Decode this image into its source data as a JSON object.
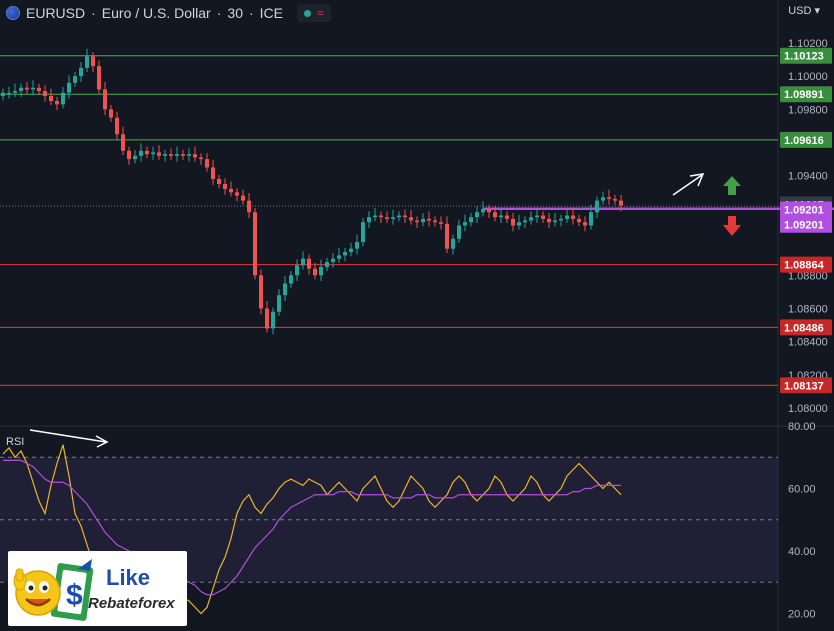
{
  "header": {
    "symbol": "EURUSD",
    "description": "Euro / U.S. Dollar",
    "interval": "30",
    "exchange": "ICE",
    "separator": "·",
    "currency": "USD",
    "wave_glyph": "≈"
  },
  "colors": {
    "background": "#131722",
    "up": "#26a69a",
    "down": "#ef5350",
    "support_line": "#e53935",
    "resistance_line": "#4caf50",
    "magenta": "#b04fe0",
    "rsi_line": "#f0b429",
    "rsi_ma": "#b24fdc"
  },
  "rsi": {
    "label": "RSI"
  },
  "logo": {
    "title": "Like",
    "subtitle": "Rebateforex",
    "mascot_icon": "smiley-thumbs-up-icon"
  },
  "chart_data": [
    {
      "type": "candlestick",
      "title": "",
      "ylim": [
        1.0794,
        1.1029
      ],
      "y_ticks": [
        "1.10200",
        "1.10000",
        "1.09800",
        "1.09400",
        "1.08800",
        "1.08600",
        "1.08400",
        "1.08200",
        "1.08000"
      ],
      "levels": [
        {
          "value": 1.10123,
          "label": "1.10123",
          "kind": "resistance"
        },
        {
          "value": 1.09891,
          "label": "1.09891",
          "kind": "resistance"
        },
        {
          "value": 1.09616,
          "label": "1.09616",
          "kind": "resistance"
        },
        {
          "value": 1.09217,
          "label": "1.09217",
          "kind": "current"
        },
        {
          "value": 1.09201,
          "label": "1.09201",
          "kind": "highlight"
        },
        {
          "value": 1.08864,
          "label": "1.08864",
          "kind": "support"
        },
        {
          "value": 1.08486,
          "label": "1.08486",
          "kind": "support"
        },
        {
          "value": 1.08137,
          "label": "1.08137",
          "kind": "support"
        }
      ],
      "extra_labels": [
        {
          "value": 1.09201,
          "label": "1.09201"
        }
      ],
      "horizontal_ray": {
        "value": 1.09201,
        "from_bar": 80
      },
      "annotations": [
        "arrow-up-right",
        "green-up-arrow",
        "red-down-arrow"
      ],
      "close": [
        1.099,
        1.099,
        1.0991,
        1.0993,
        1.0992,
        1.0993,
        1.0991,
        1.0988,
        1.0985,
        1.0983,
        1.099,
        1.0996,
        1.1,
        1.1005,
        1.1012,
        1.1006,
        1.0992,
        1.098,
        1.0975,
        1.0965,
        1.0955,
        1.095,
        1.0952,
        1.0955,
        1.0953,
        1.0954,
        1.0952,
        1.0953,
        1.0952,
        1.0953,
        1.0952,
        1.0953,
        1.0951,
        1.095,
        1.0945,
        1.0938,
        1.0935,
        1.0932,
        1.093,
        1.0928,
        1.0925,
        1.0918,
        1.088,
        1.086,
        1.0848,
        1.0858,
        1.0868,
        1.0875,
        1.088,
        1.0886,
        1.089,
        1.0884,
        1.088,
        1.0885,
        1.0888,
        1.089,
        1.0892,
        1.0894,
        1.0896,
        1.09,
        1.0912,
        1.0915,
        1.0916,
        1.0915,
        1.0914,
        1.0915,
        1.0916,
        1.0915,
        1.0913,
        1.0912,
        1.0914,
        1.0913,
        1.0912,
        1.0911,
        1.0896,
        1.0902,
        1.091,
        1.0912,
        1.0915,
        1.0918,
        1.092,
        1.0918,
        1.0915,
        1.0916,
        1.0914,
        1.091,
        1.0912,
        1.0913,
        1.0915,
        1.0916,
        1.0914,
        1.0912,
        1.0913,
        1.0914,
        1.0916,
        1.0914,
        1.0912,
        1.091,
        1.0918,
        1.0925,
        1.0927,
        1.0926,
        1.0925,
        1.0922
      ]
    },
    {
      "type": "line",
      "title": "",
      "ylim": [
        16,
        80
      ],
      "y_ticks": [
        "80.00",
        "60.00",
        "40.00",
        "20.00"
      ],
      "bands": [
        30,
        50,
        70
      ],
      "rsi": [
        71,
        73,
        70,
        72,
        68,
        62,
        56,
        52,
        61,
        68,
        74,
        64,
        52,
        48,
        42,
        36,
        30,
        27,
        31,
        34,
        37,
        38,
        36,
        34,
        32,
        33,
        31,
        30,
        28,
        27,
        25,
        24,
        22,
        20,
        22,
        28,
        34,
        38,
        44,
        52,
        56,
        58,
        54,
        52,
        55,
        57,
        60,
        62,
        63,
        62,
        61,
        63,
        62,
        61,
        58,
        60,
        62,
        60,
        58,
        56,
        60,
        62,
        64,
        60,
        56,
        54,
        56,
        60,
        64,
        62,
        60,
        56,
        54,
        56,
        58,
        62,
        64,
        62,
        58,
        56,
        58,
        60,
        64,
        62,
        58,
        56,
        58,
        60,
        64,
        62,
        58,
        56,
        58,
        60,
        64,
        66,
        68,
        66,
        64,
        62,
        60,
        62,
        60,
        58
      ],
      "rsi_ma": [
        69,
        69,
        69,
        69,
        68,
        67,
        65,
        63,
        62,
        62,
        62,
        61,
        59,
        57,
        55,
        52,
        49,
        46,
        44,
        42,
        41,
        40,
        39,
        38,
        37,
        36,
        35,
        34,
        33,
        32,
        31,
        30,
        29,
        27,
        26,
        26,
        27,
        28,
        30,
        32,
        35,
        38,
        41,
        43,
        45,
        47,
        50,
        52,
        54,
        55,
        56,
        57,
        58,
        58,
        58,
        58,
        59,
        59,
        59,
        58,
        58,
        58,
        58,
        58,
        58,
        57,
        57,
        57,
        57,
        58,
        58,
        58,
        57,
        57,
        57,
        57,
        58,
        58,
        58,
        58,
        58,
        58,
        58,
        58,
        58,
        58,
        58,
        58,
        58,
        58,
        58,
        58,
        58,
        58,
        58,
        59,
        59,
        60,
        60,
        61,
        61,
        61,
        61,
        61
      ]
    }
  ]
}
